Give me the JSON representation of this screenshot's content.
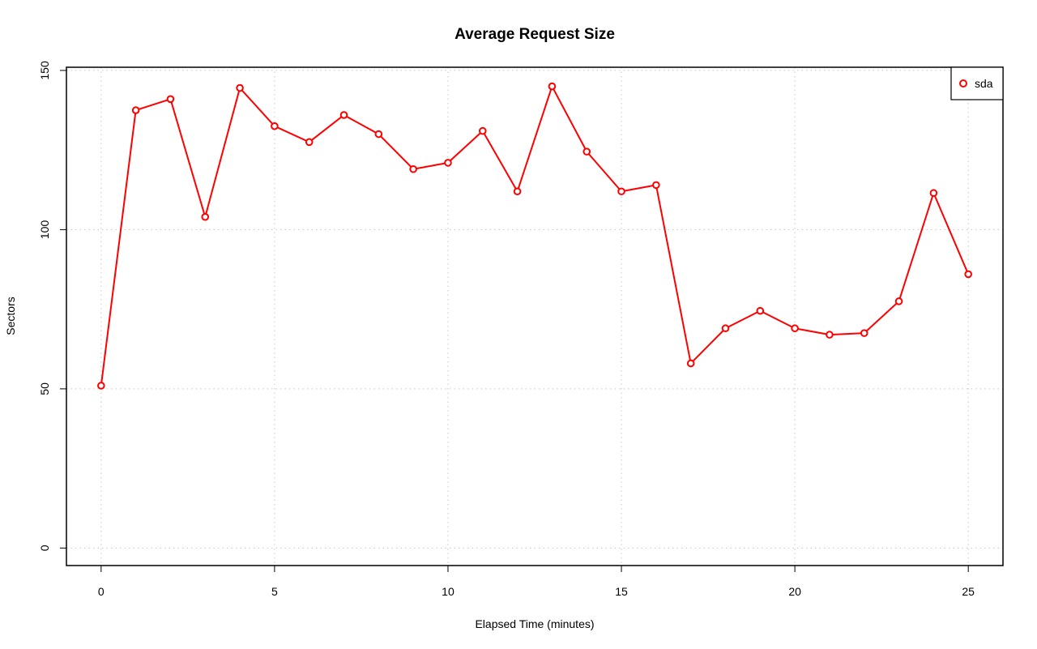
{
  "chart_data": {
    "type": "line",
    "title": "Average Request Size",
    "xlabel": "Elapsed Time (minutes)",
    "ylabel": "Sectors",
    "xlim": [
      -1,
      26
    ],
    "ylim": [
      -5.5,
      151
    ],
    "x_ticks": [
      0,
      5,
      10,
      15,
      20,
      25
    ],
    "y_ticks": [
      0,
      50,
      100,
      150
    ],
    "grid": true,
    "legend_position": "top-right",
    "series": [
      {
        "name": "sda",
        "color": "#ff0000",
        "marker": "open-circle",
        "x": [
          0,
          1,
          2,
          3,
          4,
          5,
          6,
          7,
          8,
          9,
          10,
          11,
          12,
          13,
          14,
          15,
          16,
          17,
          18,
          19,
          20,
          21,
          22,
          23,
          24,
          25
        ],
        "y": [
          51,
          137.5,
          141,
          104,
          144.5,
          132.5,
          127.5,
          136,
          130,
          119,
          121,
          131,
          112,
          145,
          124.5,
          112,
          114,
          58,
          69,
          74.5,
          69,
          67,
          67.5,
          77.5,
          111.5,
          86
        ]
      }
    ]
  }
}
